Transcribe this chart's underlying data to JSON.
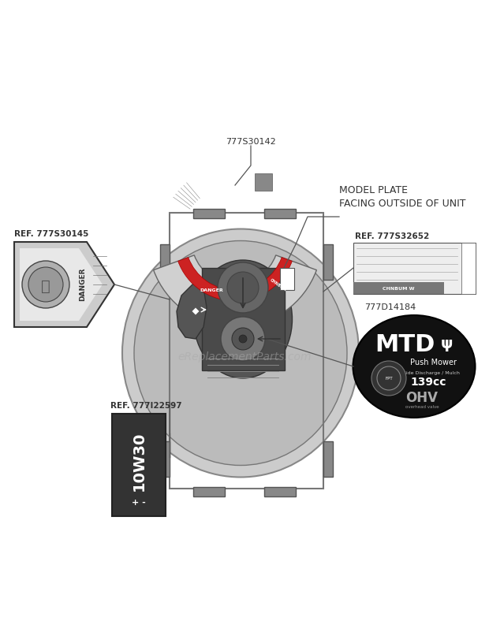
{
  "bg_color": "#ffffff",
  "watermark": "eReplacementParts.com",
  "label_777S30142": "777S30142",
  "label_777S30145": "REF. 777S30145",
  "label_777S32652": "REF. 777S32652",
  "label_777D14184": "777D14184",
  "label_777I22597": "REF. 777I22597",
  "model_plate_text": "MODEL PLATE\nFACING OUTSIDE OF UNIT",
  "fig_w": 6.2,
  "fig_h": 8.02,
  "dpi": 100
}
